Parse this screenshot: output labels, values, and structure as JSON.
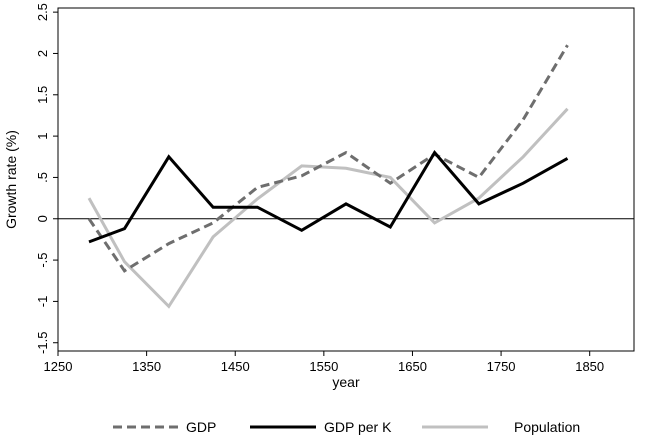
{
  "chart_data": {
    "type": "line",
    "title": "",
    "xlabel": "year",
    "ylabel": "Growth rate (%)",
    "xlim": [
      1250,
      1900
    ],
    "ylim": [
      -1.6,
      2.55
    ],
    "x_ticks": [
      1250,
      1350,
      1450,
      1550,
      1650,
      1750,
      1850
    ],
    "x_tick_labels": [
      "1250",
      "1350",
      "1450",
      "1550",
      "1650",
      "1750",
      "1850"
    ],
    "y_ticks": [
      -1.5,
      -1,
      -0.5,
      0,
      0.5,
      1,
      1.5,
      2,
      2.5
    ],
    "y_tick_labels": [
      "-1.5",
      "-1",
      "-.5",
      "0",
      ".5",
      "1",
      "1.5",
      "2",
      "2.5"
    ],
    "grid": false,
    "zero_line": true,
    "legend_position": "bottom",
    "series": [
      {
        "name": "GDP",
        "color": "#6e6e6e",
        "style": "dashed",
        "points": [
          [
            1285,
            0.0
          ],
          [
            1325,
            -0.63
          ],
          [
            1375,
            -0.3
          ],
          [
            1425,
            -0.05
          ],
          [
            1475,
            0.38
          ],
          [
            1525,
            0.52
          ],
          [
            1575,
            0.8
          ],
          [
            1625,
            0.43
          ],
          [
            1675,
            0.78
          ],
          [
            1725,
            0.5
          ],
          [
            1775,
            1.2
          ],
          [
            1825,
            2.1
          ]
        ]
      },
      {
        "name": "GDP per K",
        "color": "#000000",
        "style": "solid",
        "points": [
          [
            1285,
            -0.28
          ],
          [
            1325,
            -0.12
          ],
          [
            1375,
            0.75
          ],
          [
            1425,
            0.14
          ],
          [
            1475,
            0.14
          ],
          [
            1525,
            -0.14
          ],
          [
            1575,
            0.18
          ],
          [
            1625,
            -0.1
          ],
          [
            1675,
            0.8
          ],
          [
            1725,
            0.18
          ],
          [
            1775,
            0.43
          ],
          [
            1825,
            0.73
          ]
        ]
      },
      {
        "name": "Population",
        "color": "#c0c0c0",
        "style": "solid",
        "points": [
          [
            1285,
            0.25
          ],
          [
            1325,
            -0.52
          ],
          [
            1375,
            -1.06
          ],
          [
            1425,
            -0.22
          ],
          [
            1475,
            0.24
          ],
          [
            1525,
            0.64
          ],
          [
            1575,
            0.61
          ],
          [
            1625,
            0.5
          ],
          [
            1675,
            -0.05
          ],
          [
            1725,
            0.25
          ],
          [
            1775,
            0.75
          ],
          [
            1825,
            1.33
          ]
        ]
      }
    ]
  }
}
